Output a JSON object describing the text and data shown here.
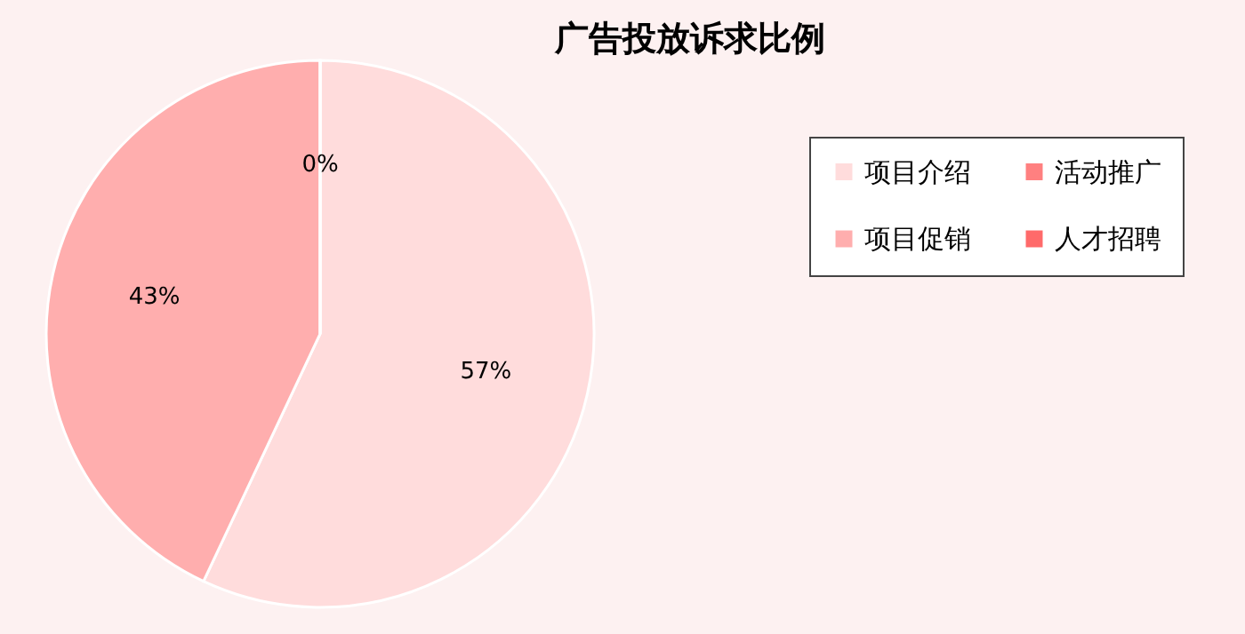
{
  "chart_data": {
    "type": "pie",
    "title": "广告投放诉求比例",
    "categories": [
      "项目介绍",
      "项目促销",
      "活动推广",
      "人才招聘"
    ],
    "values": [
      57,
      43,
      0,
      0
    ],
    "colors": [
      "#ffdcdc",
      "#ffaeae",
      "#ff8080",
      "#ff6a6a"
    ],
    "value_labels": [
      "57%",
      "43%",
      "0%",
      null
    ],
    "legend": "right"
  }
}
